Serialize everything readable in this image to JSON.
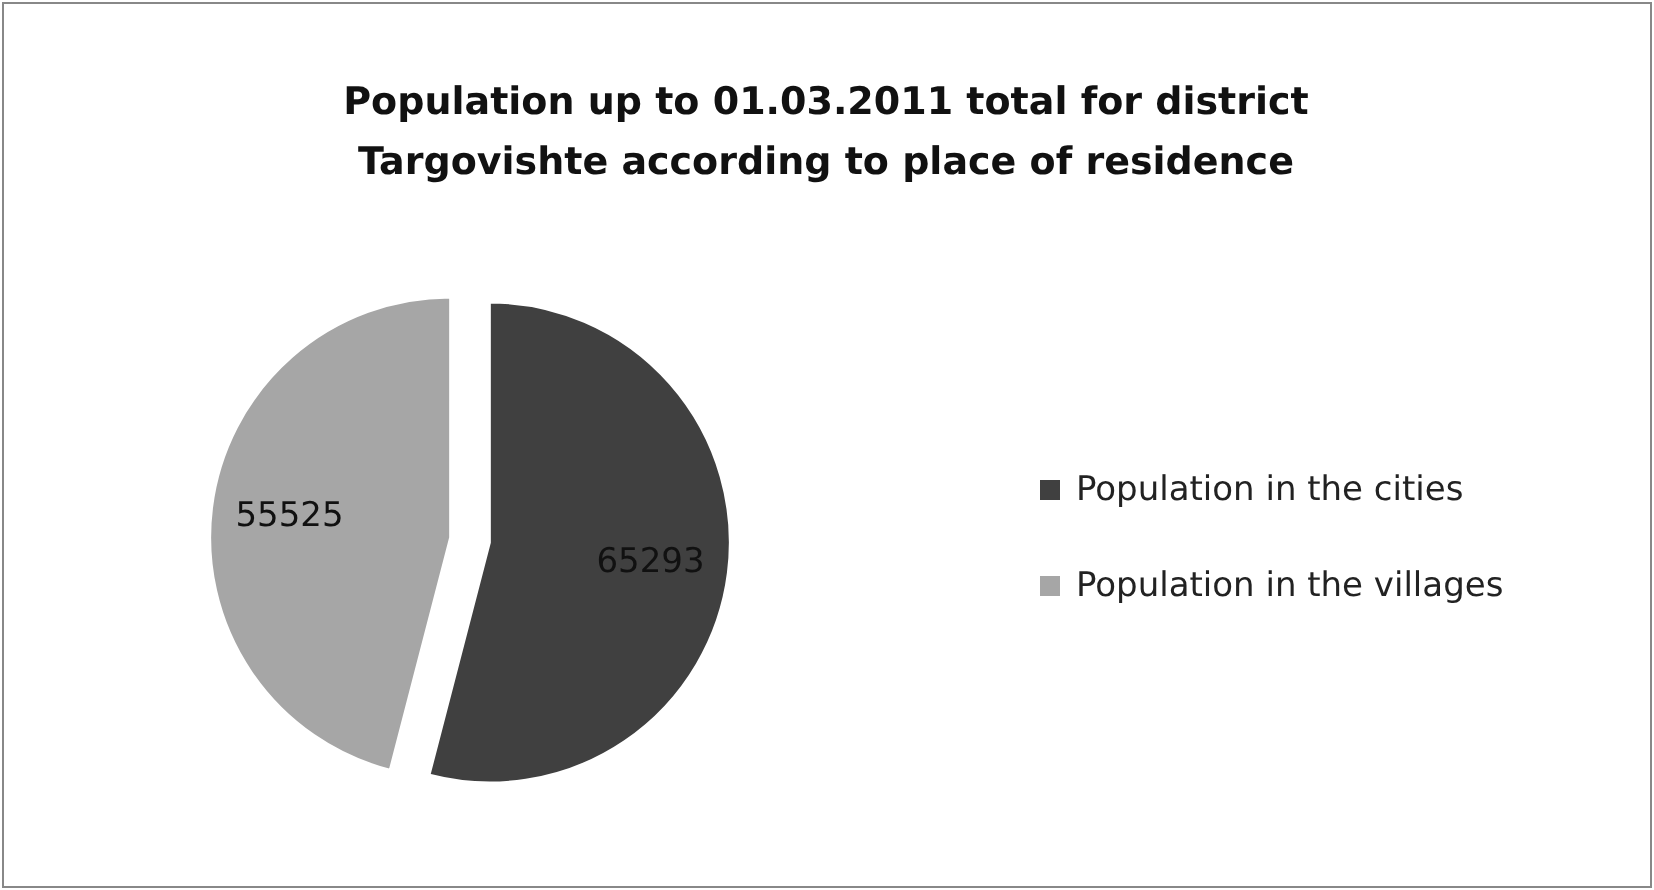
{
  "chart_data": {
    "type": "pie",
    "title": "Population up to 01.03.2011 total for district Targovishte according to place of residence",
    "categories": [
      "Population in the cities",
      "Population in the villages"
    ],
    "values": [
      65293,
      55525
    ],
    "colors": [
      "#404040",
      "#a6a6a6"
    ],
    "data_labels": true,
    "legend": "right"
  }
}
